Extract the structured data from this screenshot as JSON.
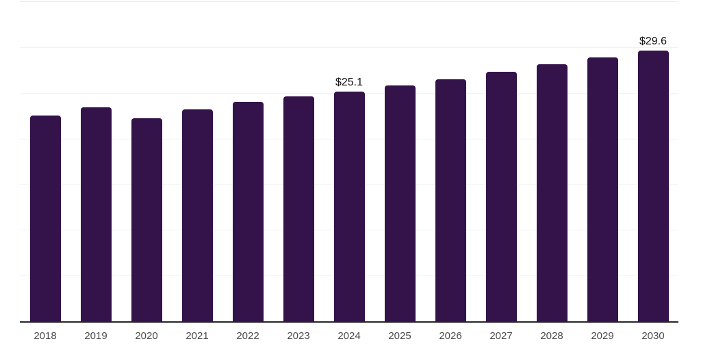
{
  "chart_data": {
    "type": "bar",
    "title": "",
    "xlabel": "",
    "ylabel": "",
    "categories": [
      "2018",
      "2019",
      "2020",
      "2021",
      "2022",
      "2023",
      "2024",
      "2025",
      "2026",
      "2027",
      "2028",
      "2029",
      "2030"
    ],
    "values": [
      22.5,
      23.4,
      22.2,
      23.2,
      24.0,
      24.6,
      25.1,
      25.8,
      26.5,
      27.3,
      28.1,
      28.9,
      29.6
    ],
    "data_labels": [
      {
        "category": "2024",
        "text": "$25.1"
      },
      {
        "category": "2030",
        "text": "$29.6"
      }
    ],
    "ylim": [
      0,
      35
    ],
    "grid_step": 5,
    "grid": "horizontal-only",
    "legend": "none",
    "colors": {
      "bar": "#34124a",
      "axis_line": "#262626",
      "gridline": "#f2f2f2",
      "top_gridline": "#e9e9e9",
      "data_label": "#111111",
      "tick_label": "#4a4a4a",
      "background": "#ffffff"
    }
  }
}
